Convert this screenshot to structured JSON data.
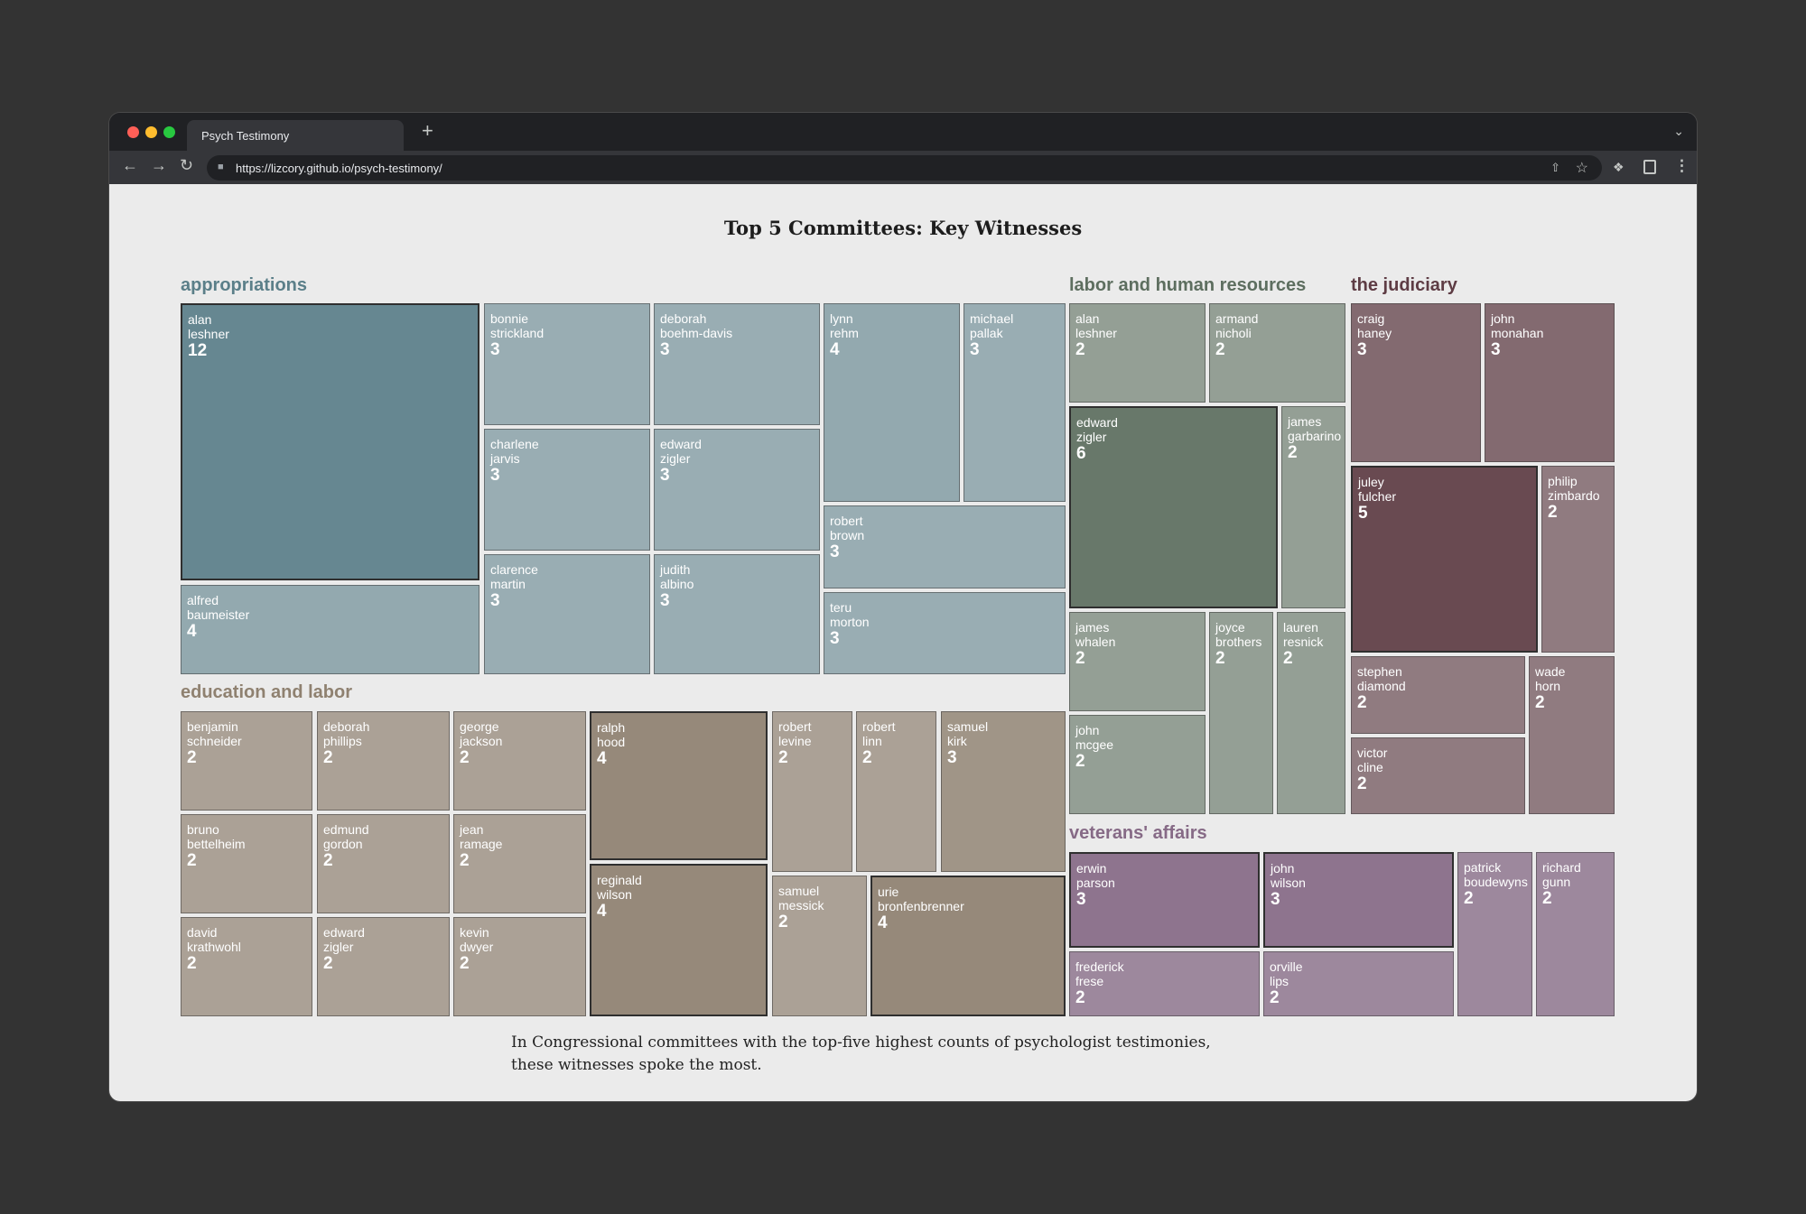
{
  "browser": {
    "tab_title": "Psych Testimony",
    "new_tab": "+",
    "url": "https://lizcory.github.io/psych-testimony/"
  },
  "page": {
    "title": "Top 5 Committees: Key Witnesses",
    "caption_line1": "In Congressional committees with the top-five highest counts of psychologist testimonies,",
    "caption_line2": "these witnesses spoke the most."
  },
  "chart_data": {
    "type": "treemap",
    "title": "Top 5 Committees: Key Witnesses",
    "committees": [
      {
        "name": "appropriations",
        "color": "#5b7f89",
        "witnesses": [
          {
            "first": "alan",
            "last": "leshner",
            "count": 12
          },
          {
            "first": "alfred",
            "last": "baumeister",
            "count": 4
          },
          {
            "first": "bonnie",
            "last": "strickland",
            "count": 3
          },
          {
            "first": "deborah",
            "last": "boehm-davis",
            "count": 3
          },
          {
            "first": "charlene",
            "last": "jarvis",
            "count": 3
          },
          {
            "first": "edward",
            "last": "zigler",
            "count": 3
          },
          {
            "first": "clarence",
            "last": "martin",
            "count": 3
          },
          {
            "first": "judith",
            "last": "albino",
            "count": 3
          },
          {
            "first": "lynn",
            "last": "rehm",
            "count": 4
          },
          {
            "first": "michael",
            "last": "pallak",
            "count": 3
          },
          {
            "first": "robert",
            "last": "brown",
            "count": 3
          },
          {
            "first": "teru",
            "last": "morton",
            "count": 3
          }
        ]
      },
      {
        "name": "education and labor",
        "color": "#8f8170",
        "witnesses": [
          {
            "first": "benjamin",
            "last": "schneider",
            "count": 2
          },
          {
            "first": "deborah",
            "last": "phillips",
            "count": 2
          },
          {
            "first": "george",
            "last": "jackson",
            "count": 2
          },
          {
            "first": "bruno",
            "last": "bettelheim",
            "count": 2
          },
          {
            "first": "edmund",
            "last": "gordon",
            "count": 2
          },
          {
            "first": "jean",
            "last": "ramage",
            "count": 2
          },
          {
            "first": "david",
            "last": "krathwohl",
            "count": 2
          },
          {
            "first": "edward",
            "last": "zigler",
            "count": 2
          },
          {
            "first": "kevin",
            "last": "dwyer",
            "count": 2
          },
          {
            "first": "ralph",
            "last": "hood",
            "count": 4
          },
          {
            "first": "reginald",
            "last": "wilson",
            "count": 4
          },
          {
            "first": "robert",
            "last": "levine",
            "count": 2
          },
          {
            "first": "robert",
            "last": "linn",
            "count": 2
          },
          {
            "first": "samuel",
            "last": "kirk",
            "count": 3
          },
          {
            "first": "samuel",
            "last": "messick",
            "count": 2
          },
          {
            "first": "urie",
            "last": "bronfenbrenner",
            "count": 4
          }
        ]
      },
      {
        "name": "labor and human resources",
        "color": "#5d6e5f",
        "witnesses": [
          {
            "first": "alan",
            "last": "leshner",
            "count": 2
          },
          {
            "first": "armand",
            "last": "nicholi",
            "count": 2
          },
          {
            "first": "edward",
            "last": "zigler",
            "count": 6
          },
          {
            "first": "james",
            "last": "garbarino",
            "count": 2
          },
          {
            "first": "james",
            "last": "whalen",
            "count": 2
          },
          {
            "first": "john",
            "last": "mcgee",
            "count": 2
          },
          {
            "first": "joyce",
            "last": "brothers",
            "count": 2
          },
          {
            "first": "lauren",
            "last": "resnick",
            "count": 2
          }
        ]
      },
      {
        "name": "the judiciary",
        "color": "#5e3c44",
        "witnesses": [
          {
            "first": "craig",
            "last": "haney",
            "count": 3
          },
          {
            "first": "john",
            "last": "monahan",
            "count": 3
          },
          {
            "first": "juley",
            "last": "fulcher",
            "count": 5
          },
          {
            "first": "philip",
            "last": "zimbardo",
            "count": 2
          },
          {
            "first": "stephen",
            "last": "diamond",
            "count": 2
          },
          {
            "first": "victor",
            "last": "cline",
            "count": 2
          },
          {
            "first": "wade",
            "last": "horn",
            "count": 2
          }
        ]
      },
      {
        "name": "veterans' affairs",
        "color": "#866a86",
        "witnesses": [
          {
            "first": "erwin",
            "last": "parson",
            "count": 3
          },
          {
            "first": "john",
            "last": "wilson",
            "count": 3
          },
          {
            "first": "frederick",
            "last": "frese",
            "count": 2
          },
          {
            "first": "orville",
            "last": "lips",
            "count": 2
          },
          {
            "first": "patrick",
            "last": "boudewyns",
            "count": 2
          },
          {
            "first": "richard",
            "last": "gunn",
            "count": 2
          }
        ]
      }
    ]
  }
}
